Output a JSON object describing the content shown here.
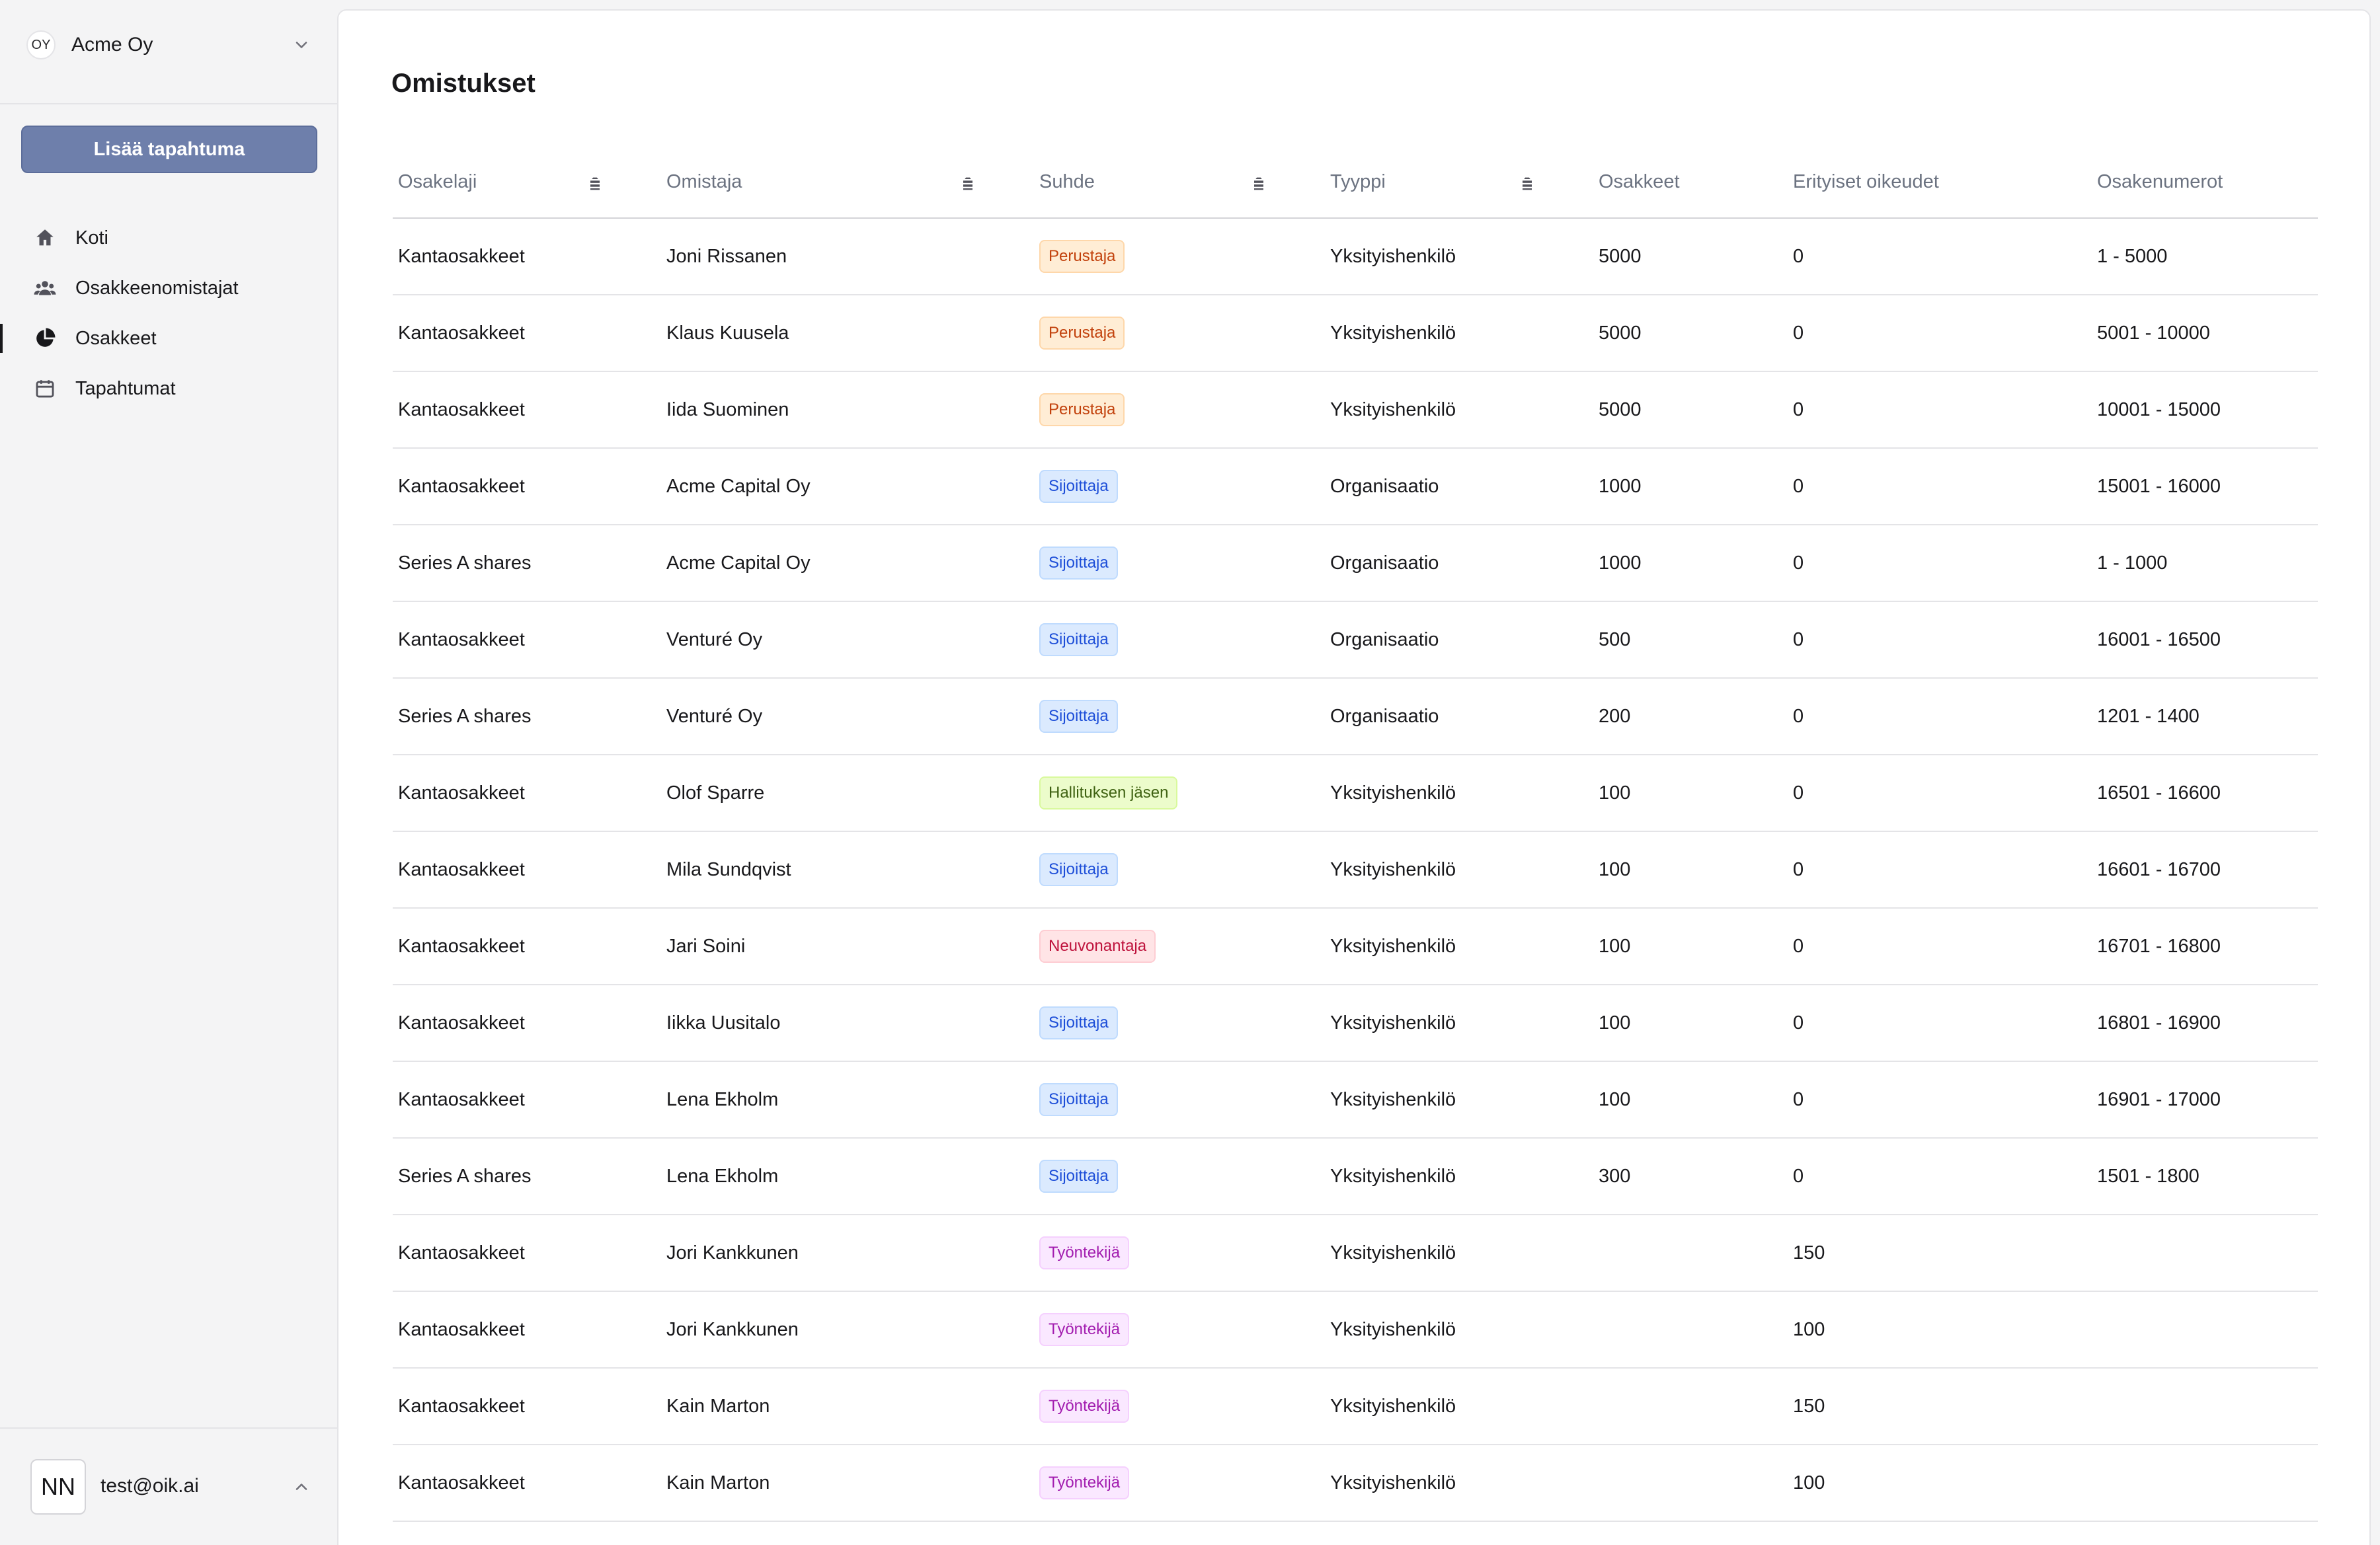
{
  "sidebar": {
    "org": {
      "avatar_text": "OY",
      "name": "Acme Oy"
    },
    "add_event_label": "Lisää tapahtuma",
    "nav": [
      {
        "label": "Koti",
        "icon": "home-icon",
        "active": false
      },
      {
        "label": "Osakkeenomistajat",
        "icon": "users-icon",
        "active": false
      },
      {
        "label": "Osakkeet",
        "icon": "pie-chart-icon",
        "active": true
      },
      {
        "label": "Tapahtumat",
        "icon": "calendar-icon",
        "active": false
      }
    ],
    "user": {
      "avatar_text": "NN",
      "email": "test@oik.ai"
    }
  },
  "main": {
    "title": "Omistukset",
    "table": {
      "columns": [
        {
          "label": "Osakelaji",
          "sortable": true
        },
        {
          "label": "Omistaja",
          "sortable": true
        },
        {
          "label": "Suhde",
          "sortable": true
        },
        {
          "label": "Tyyppi",
          "sortable": true
        },
        {
          "label": "Osakkeet",
          "sortable": false
        },
        {
          "label": "Erityiset oikeudet",
          "sortable": false
        },
        {
          "label": "Osakenumerot",
          "sortable": false
        }
      ],
      "rows": [
        {
          "class": "Kantaosakkeet",
          "owner": "Joni Rissanen",
          "relation": "Perustaja",
          "relation_kind": "perustaja",
          "type": "Yksityishenkilö",
          "shares": "5000",
          "special": "0",
          "numbers": "1 - 5000"
        },
        {
          "class": "Kantaosakkeet",
          "owner": "Klaus Kuusela",
          "relation": "Perustaja",
          "relation_kind": "perustaja",
          "type": "Yksityishenkilö",
          "shares": "5000",
          "special": "0",
          "numbers": "5001 - 10000"
        },
        {
          "class": "Kantaosakkeet",
          "owner": "Iida Suominen",
          "relation": "Perustaja",
          "relation_kind": "perustaja",
          "type": "Yksityishenkilö",
          "shares": "5000",
          "special": "0",
          "numbers": "10001 - 15000"
        },
        {
          "class": "Kantaosakkeet",
          "owner": "Acme Capital Oy",
          "relation": "Sijoittaja",
          "relation_kind": "sijoittaja",
          "type": "Organisaatio",
          "shares": "1000",
          "special": "0",
          "numbers": "15001 - 16000"
        },
        {
          "class": "Series A shares",
          "owner": "Acme Capital Oy",
          "relation": "Sijoittaja",
          "relation_kind": "sijoittaja",
          "type": "Organisaatio",
          "shares": "1000",
          "special": "0",
          "numbers": "1 - 1000"
        },
        {
          "class": "Kantaosakkeet",
          "owner": "Venturé Oy",
          "relation": "Sijoittaja",
          "relation_kind": "sijoittaja",
          "type": "Organisaatio",
          "shares": "500",
          "special": "0",
          "numbers": "16001 - 16500"
        },
        {
          "class": "Series A shares",
          "owner": "Venturé Oy",
          "relation": "Sijoittaja",
          "relation_kind": "sijoittaja",
          "type": "Organisaatio",
          "shares": "200",
          "special": "0",
          "numbers": "1201 - 1400"
        },
        {
          "class": "Kantaosakkeet",
          "owner": "Olof Sparre",
          "relation": "Hallituksen jäsen",
          "relation_kind": "hallitus",
          "type": "Yksityishenkilö",
          "shares": "100",
          "special": "0",
          "numbers": "16501 - 16600"
        },
        {
          "class": "Kantaosakkeet",
          "owner": "Mila Sundqvist",
          "relation": "Sijoittaja",
          "relation_kind": "sijoittaja",
          "type": "Yksityishenkilö",
          "shares": "100",
          "special": "0",
          "numbers": "16601 - 16700"
        },
        {
          "class": "Kantaosakkeet",
          "owner": "Jari Soini",
          "relation": "Neuvonantaja",
          "relation_kind": "neuvonantaja",
          "type": "Yksityishenkilö",
          "shares": "100",
          "special": "0",
          "numbers": "16701 - 16800"
        },
        {
          "class": "Kantaosakkeet",
          "owner": "Iikka Uusitalo",
          "relation": "Sijoittaja",
          "relation_kind": "sijoittaja",
          "type": "Yksityishenkilö",
          "shares": "100",
          "special": "0",
          "numbers": "16801 - 16900"
        },
        {
          "class": "Kantaosakkeet",
          "owner": "Lena Ekholm",
          "relation": "Sijoittaja",
          "relation_kind": "sijoittaja",
          "type": "Yksityishenkilö",
          "shares": "100",
          "special": "0",
          "numbers": "16901 - 17000"
        },
        {
          "class": "Series A shares",
          "owner": "Lena Ekholm",
          "relation": "Sijoittaja",
          "relation_kind": "sijoittaja",
          "type": "Yksityishenkilö",
          "shares": "300",
          "special": "0",
          "numbers": "1501 - 1800"
        },
        {
          "class": "Kantaosakkeet",
          "owner": "Jori Kankkunen",
          "relation": "Työntekijä",
          "relation_kind": "tyontekija",
          "type": "Yksityishenkilö",
          "shares": "",
          "special": "150",
          "numbers": ""
        },
        {
          "class": "Kantaosakkeet",
          "owner": "Jori Kankkunen",
          "relation": "Työntekijä",
          "relation_kind": "tyontekija",
          "type": "Yksityishenkilö",
          "shares": "",
          "special": "100",
          "numbers": ""
        },
        {
          "class": "Kantaosakkeet",
          "owner": "Kain Marton",
          "relation": "Työntekijä",
          "relation_kind": "tyontekija",
          "type": "Yksityishenkilö",
          "shares": "",
          "special": "150",
          "numbers": ""
        },
        {
          "class": "Kantaosakkeet",
          "owner": "Kain Marton",
          "relation": "Työntekijä",
          "relation_kind": "tyontekija",
          "type": "Yksityishenkilö",
          "shares": "",
          "special": "100",
          "numbers": ""
        }
      ]
    }
  },
  "colors": {
    "primary_button": "#6e7fab",
    "perustaja": "#c2410c",
    "sijoittaja": "#1d4ed8",
    "hallitus": "#3f6212",
    "neuvonantaja": "#be123c",
    "tyontekija": "#a21caf"
  }
}
